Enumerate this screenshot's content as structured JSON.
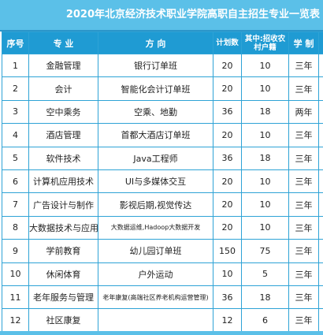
{
  "title": "2020年北京经济技术职业学院高职自主招生专业一览表",
  "headers": {
    "index": "序号",
    "major": "专 业",
    "direction": "方 向",
    "plan": "计划数",
    "rural": "其中:招收农村户籍",
    "duration": "学 制"
  },
  "rows": [
    {
      "index": "1",
      "major": "金融管理",
      "direction": "银行订单班",
      "plan": "20",
      "rural": "10",
      "duration": "三年"
    },
    {
      "index": "2",
      "major": "会计",
      "direction": "智能化会计订单班",
      "plan": "20",
      "rural": "10",
      "duration": "三年"
    },
    {
      "index": "3",
      "major": "空中乘务",
      "direction": "空乘、地勤",
      "plan": "36",
      "rural": "18",
      "duration": "两年"
    },
    {
      "index": "4",
      "major": "酒店管理",
      "direction": "首都大酒店订单班",
      "plan": "20",
      "rural": "10",
      "duration": "三年"
    },
    {
      "index": "5",
      "major": "软件技术",
      "direction": "Java工程师",
      "plan": "36",
      "rural": "18",
      "duration": "三年"
    },
    {
      "index": "6",
      "major": "计算机应用技术",
      "direction": "UI与多媒体交互",
      "plan": "20",
      "rural": "10",
      "duration": "三年"
    },
    {
      "index": "7",
      "major": "广告设计与制作",
      "direction": "影视后期,视觉传达",
      "plan": "20",
      "rural": "10",
      "duration": "三年"
    },
    {
      "index": "8",
      "major": "大数据技术与应用",
      "direction": "大数据运维,Hadoop大数据开发",
      "plan": "20",
      "rural": "10",
      "duration": "三年"
    },
    {
      "index": "9",
      "major": "学前教育",
      "direction": "幼儿园订单班",
      "plan": "150",
      "rural": "75",
      "duration": "三年"
    },
    {
      "index": "10",
      "major": "休闲体育",
      "direction": "户外运动",
      "plan": "10",
      "rural": "5",
      "duration": "三年"
    },
    {
      "index": "11",
      "major": "老年服务与管理",
      "direction": "老年康复(高端社区养老机构运营管理)",
      "plan": "36",
      "rural": "18",
      "duration": "三年"
    },
    {
      "index": "12",
      "major": "社区康复",
      "direction": "",
      "plan": "12",
      "rural": "6",
      "duration": "三年"
    }
  ]
}
